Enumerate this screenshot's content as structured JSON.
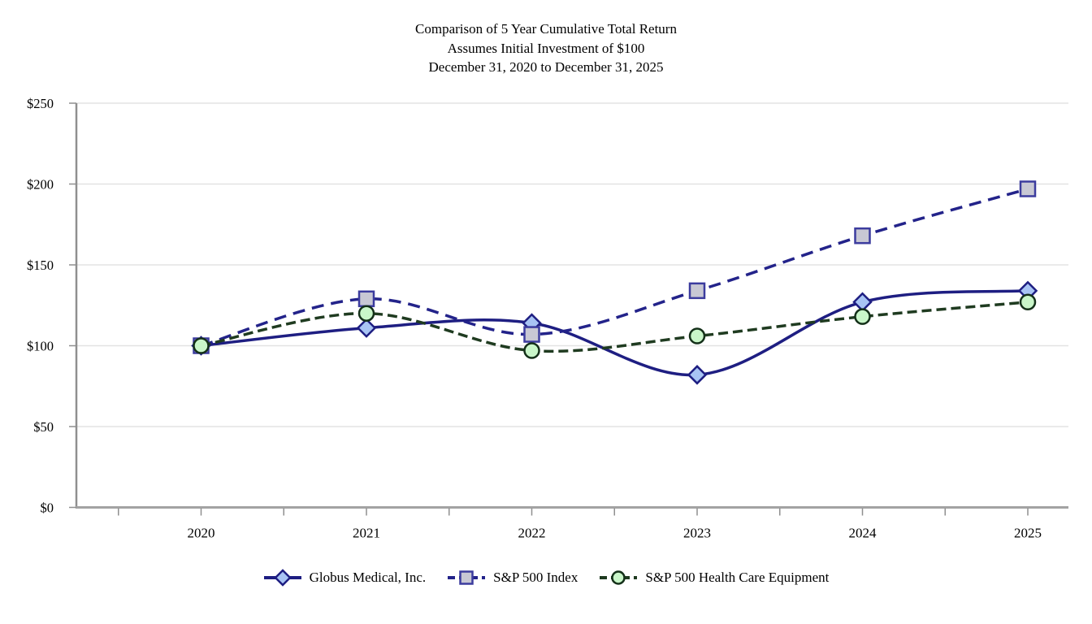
{
  "chart_data": {
    "type": "line",
    "line_shape": "smoothed",
    "title_lines": [
      "Comparison of 5 Year Cumulative Total Return",
      "Assumes Initial Investment of $100",
      "December 31, 2020 to December 31, 2025"
    ],
    "x_labels": [
      "2020",
      "2021",
      "2022",
      "2023",
      "2024",
      "2025"
    ],
    "ylim": [
      0,
      250
    ],
    "ytick_values": [
      0,
      50,
      100,
      150,
      200,
      250
    ],
    "ytick_labels": [
      "$0",
      "$50",
      "$100",
      "$150",
      "$200",
      "$250"
    ],
    "grid": "horizontal-light-gray",
    "legend_position": "bottom-center",
    "series": [
      {
        "name": "Globus Medical, Inc.",
        "values": [
          100,
          111,
          114,
          82,
          127,
          134
        ],
        "color": "#1e1e82",
        "dash": "none",
        "marker": "diamond",
        "marker_fill": "#a8c4f4",
        "marker_stroke": "#1e1e82"
      },
      {
        "name": "S&P 500 Index",
        "values": [
          100,
          129,
          107,
          134,
          168,
          197
        ],
        "color": "#23238a",
        "dash": "15 9",
        "marker": "square",
        "marker_fill": "#c8c8d4",
        "marker_stroke": "#3c3c9e"
      },
      {
        "name": "S&P 500 Health Care Equipment",
        "values": [
          100,
          120,
          97,
          106,
          118,
          127
        ],
        "color": "#1f3b20",
        "dash": "12 6",
        "marker": "circle",
        "marker_fill": "#c9f6c9",
        "marker_stroke": "#143019"
      }
    ]
  }
}
